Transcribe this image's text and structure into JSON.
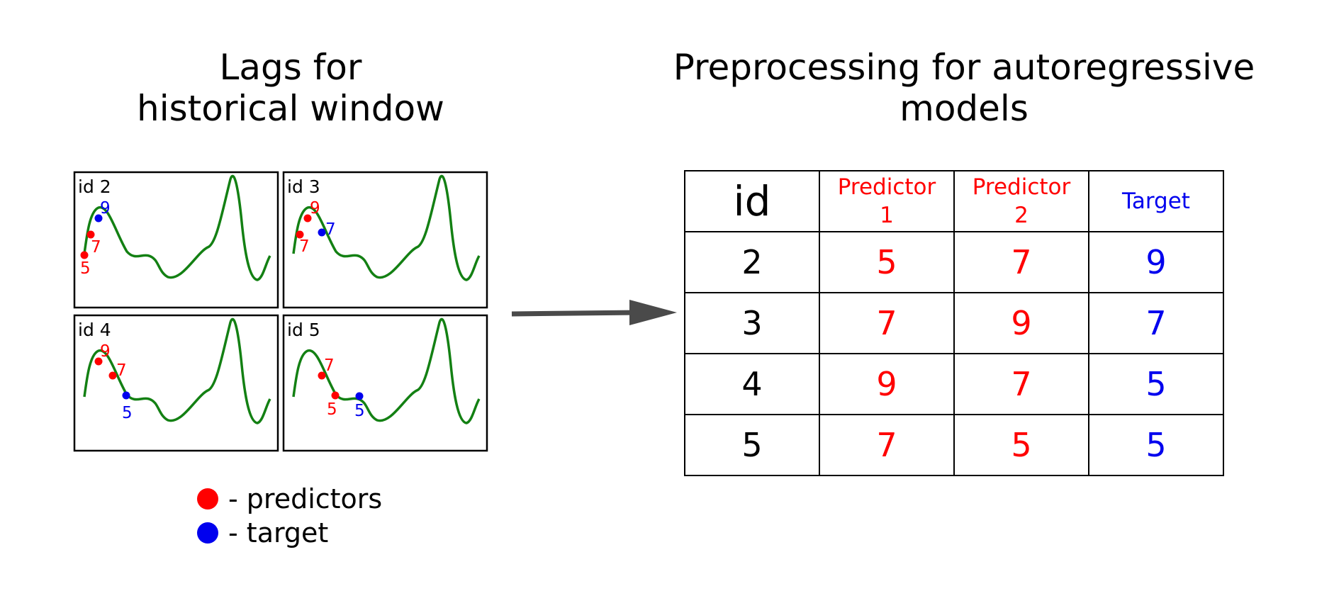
{
  "left_title": [
    "Lags for",
    "historical window"
  ],
  "right_title": [
    "Preprocessing for autoregressive",
    "models"
  ],
  "panels": [
    {
      "label": "id 2",
      "points": [
        {
          "value": "5",
          "role": "predictor"
        },
        {
          "value": "7",
          "role": "predictor"
        },
        {
          "value": "9",
          "role": "target"
        }
      ]
    },
    {
      "label": "id 3",
      "points": [
        {
          "value": "7",
          "role": "predictor"
        },
        {
          "value": "9",
          "role": "predictor"
        },
        {
          "value": "7",
          "role": "target"
        }
      ]
    },
    {
      "label": "id 4",
      "points": [
        {
          "value": "9",
          "role": "predictor"
        },
        {
          "value": "7",
          "role": "predictor"
        },
        {
          "value": "5",
          "role": "target"
        }
      ]
    },
    {
      "label": "id 5",
      "points": [
        {
          "value": "7",
          "role": "predictor"
        },
        {
          "value": "5",
          "role": "predictor"
        },
        {
          "value": "5",
          "role": "target"
        }
      ]
    }
  ],
  "legend": {
    "predictors": "- predictors",
    "target": "- target"
  },
  "colors": {
    "predictor": "#ff0000",
    "target": "#0000ee",
    "curve": "#138013",
    "arrow": "#4a4a4a"
  },
  "table": {
    "headers": {
      "id": "id",
      "p1_line1": "Predictor",
      "p1_line2": "1",
      "p2_line1": "Predictor",
      "p2_line2": "2",
      "target": "Target"
    },
    "rows": [
      {
        "id": "2",
        "p1": "5",
        "p2": "7",
        "target": "9"
      },
      {
        "id": "3",
        "p1": "7",
        "p2": "9",
        "target": "7"
      },
      {
        "id": "4",
        "p1": "9",
        "p2": "7",
        "target": "5"
      },
      {
        "id": "5",
        "p1": "7",
        "p2": "5",
        "target": "5"
      }
    ]
  }
}
